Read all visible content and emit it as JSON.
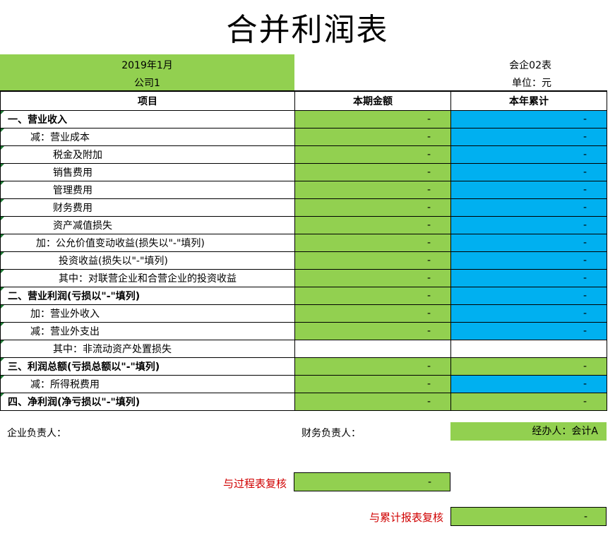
{
  "title": "合并利润表",
  "header": {
    "period": "2019年1月",
    "company": "公司1",
    "form_code": "会企02表",
    "unit": "单位：元"
  },
  "columns": {
    "item": "项目",
    "current": "本期金额",
    "ytd": "本年累计"
  },
  "rows": [
    {
      "label": "一、营业收入",
      "indent": 10,
      "bold": true,
      "current": "-",
      "ytd": "-",
      "cur_color": "green",
      "ytd_color": "blue"
    },
    {
      "label": "减：营业成本",
      "indent": 42,
      "bold": false,
      "current": "-",
      "ytd": "-",
      "cur_color": "green",
      "ytd_color": "blue"
    },
    {
      "label": "税金及附加",
      "indent": 74,
      "bold": false,
      "current": "-",
      "ytd": "-",
      "cur_color": "green",
      "ytd_color": "blue"
    },
    {
      "label": "销售费用",
      "indent": 74,
      "bold": false,
      "current": "-",
      "ytd": "-",
      "cur_color": "green",
      "ytd_color": "blue"
    },
    {
      "label": "管理费用",
      "indent": 74,
      "bold": false,
      "current": "-",
      "ytd": "-",
      "cur_color": "green",
      "ytd_color": "blue"
    },
    {
      "label": "财务费用",
      "indent": 74,
      "bold": false,
      "current": "-",
      "ytd": "-",
      "cur_color": "green",
      "ytd_color": "blue"
    },
    {
      "label": "资产减值损失",
      "indent": 74,
      "bold": false,
      "current": "-",
      "ytd": "-",
      "cur_color": "green",
      "ytd_color": "blue"
    },
    {
      "label": "加：公允价值变动收益(损失以\"-\"填列)",
      "indent": 50,
      "bold": false,
      "current": "-",
      "ytd": "-",
      "cur_color": "green",
      "ytd_color": "blue"
    },
    {
      "label": "投资收益(损失以\"-\"填列)",
      "indent": 82,
      "bold": false,
      "current": "-",
      "ytd": "-",
      "cur_color": "green",
      "ytd_color": "blue"
    },
    {
      "label": "其中：对联营企业和合营企业的投资收益",
      "indent": 82,
      "bold": false,
      "current": "-",
      "ytd": "-",
      "cur_color": "green",
      "ytd_color": "blue"
    },
    {
      "label": "二、营业利润(亏损以\"-\"填列)",
      "indent": 10,
      "bold": true,
      "current": "-",
      "ytd": "-",
      "cur_color": "green",
      "ytd_color": "blue"
    },
    {
      "label": "加：营业外收入",
      "indent": 42,
      "bold": false,
      "current": "-",
      "ytd": "-",
      "cur_color": "green",
      "ytd_color": "blue"
    },
    {
      "label": "减：营业外支出",
      "indent": 42,
      "bold": false,
      "current": "-",
      "ytd": "-",
      "cur_color": "green",
      "ytd_color": "blue"
    },
    {
      "label": "其中：非流动资产处置损失",
      "indent": 74,
      "bold": false,
      "current": "",
      "ytd": "",
      "cur_color": "white",
      "ytd_color": "white"
    },
    {
      "label": "三、利润总额(亏损总额以\"-\"填列)",
      "indent": 10,
      "bold": true,
      "current": "-",
      "ytd": "-",
      "cur_color": "green",
      "ytd_color": "green"
    },
    {
      "label": "减：所得税费用",
      "indent": 42,
      "bold": false,
      "current": "-",
      "ytd": "-",
      "cur_color": "green",
      "ytd_color": "blue"
    },
    {
      "label": "四、净利润(净亏损以\"-\"填列)",
      "indent": 10,
      "bold": true,
      "current": "-",
      "ytd": "-",
      "cur_color": "green",
      "ytd_color": "green"
    }
  ],
  "footer": {
    "responsible": "企业负责人：",
    "finance": "财务负责人：",
    "handler": "经办人：会计A"
  },
  "checks": [
    {
      "label": "与过程表复核",
      "value": "-"
    },
    {
      "label": "与累计报表复核",
      "value": "-"
    }
  ],
  "colors": {
    "green": "#92d050",
    "blue": "#00b0f0",
    "red": "#d00000"
  }
}
